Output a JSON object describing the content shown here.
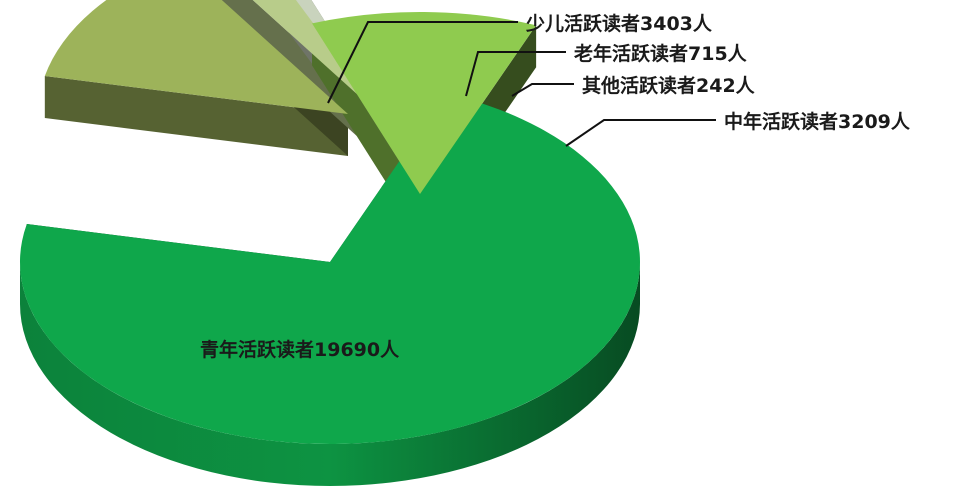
{
  "chart_data": {
    "type": "pie",
    "title": "",
    "slices": [
      {
        "label": "青年活跃读者19690人",
        "value": 19690,
        "color": "#0fa74b"
      },
      {
        "label": "少儿活跃读者3403人",
        "value": 3403,
        "color": "#9db35a"
      },
      {
        "label": "老年活跃读者715人",
        "value": 715,
        "color": "#b8cc8a"
      },
      {
        "label": "其他活跃读者242人",
        "value": 242,
        "color": "#c9d3bd"
      },
      {
        "label": "中年活跃读者3209人",
        "value": 3209,
        "color": "#8fcb4f"
      }
    ]
  }
}
